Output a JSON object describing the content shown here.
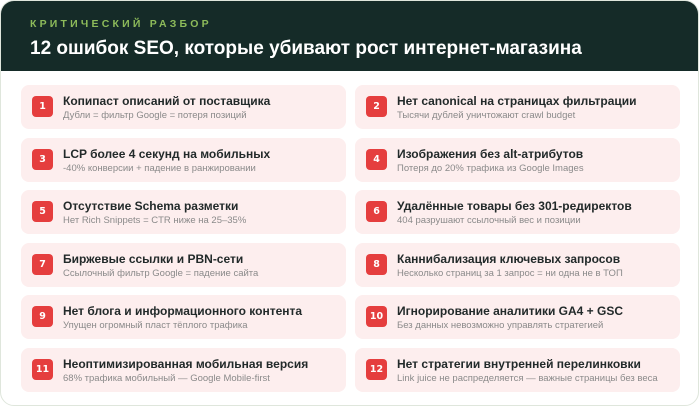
{
  "header": {
    "kicker": "КРИТИЧЕСКИЙ РАЗБОР",
    "title": "12 ошибок SEO, которые убивают рост интернет-магазина"
  },
  "colors": {
    "header_bg": "#152b28",
    "accent_green": "#8dbb5a",
    "badge_red": "#e53e3e",
    "card_bg": "#fdeeee"
  },
  "items": [
    {
      "num": "1",
      "title": "Копипаст описаний от поставщика",
      "sub": "Дубли = фильтр Google = потеря позиций"
    },
    {
      "num": "2",
      "title": "Нет canonical на страницах фильтрации",
      "sub": "Тысячи дублей уничтожают crawl budget"
    },
    {
      "num": "3",
      "title": "LCP более 4 секунд на мобильных",
      "sub": "-40% конверсии + падение в ранжировании"
    },
    {
      "num": "4",
      "title": "Изображения без alt-атрибутов",
      "sub": "Потеря до 20% трафика из Google Images"
    },
    {
      "num": "5",
      "title": "Отсутствие Schema разметки",
      "sub": "Нет Rich Snippets = CTR ниже на 25–35%"
    },
    {
      "num": "6",
      "title": "Удалённые товары без 301-редиректов",
      "sub": "404 разрушают ссылочный вес и позиции"
    },
    {
      "num": "7",
      "title": "Биржевые ссылки и PBN-сети",
      "sub": "Ссылочный фильтр Google = падение сайта"
    },
    {
      "num": "8",
      "title": "Каннибализация ключевых запросов",
      "sub": "Несколько страниц за 1 запрос = ни одна не в ТОП"
    },
    {
      "num": "9",
      "title": "Нет блога и информационного контента",
      "sub": "Упущен огромный пласт тёплого трафика"
    },
    {
      "num": "10",
      "title": "Игнорирование аналитики GA4 + GSC",
      "sub": "Без данных невозможно управлять стратегией"
    },
    {
      "num": "11",
      "title": "Неоптимизированная мобильная версия",
      "sub": "68% трафика мобильный — Google Mobile-first"
    },
    {
      "num": "12",
      "title": "Нет стратегии внутренней перелинковки",
      "sub": "Link juice не распределяется — важные страницы без веса"
    }
  ]
}
